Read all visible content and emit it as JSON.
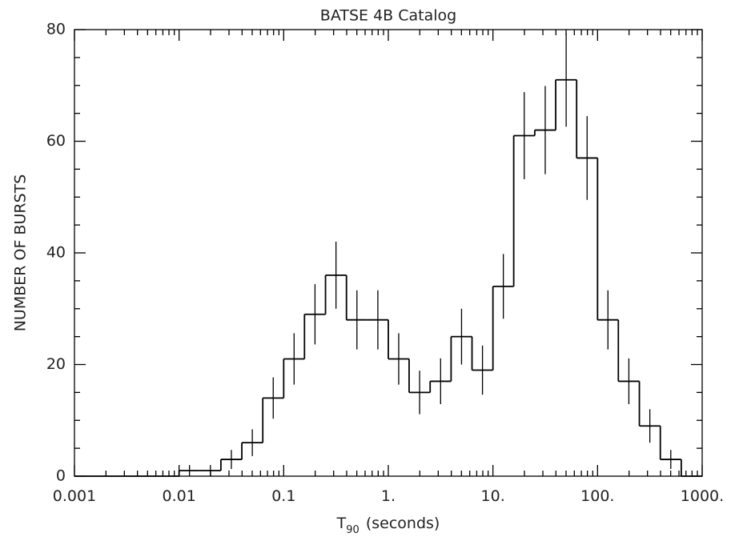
{
  "chart_data": {
    "type": "histogram",
    "title": "BATSE 4B Catalog",
    "x_label": [
      "T",
      "90",
      "(seconds)"
    ],
    "y_label": "NUMBER OF BURSTS",
    "x_scale": "log",
    "color": "#000000",
    "bins": [
      0.001,
      0.00158,
      0.00251,
      0.00398,
      0.00631,
      0.01,
      0.0158,
      0.0251,
      0.0398,
      0.0631,
      0.1,
      0.158,
      0.251,
      0.398,
      0.631,
      1,
      1.58,
      2.51,
      3.98,
      6.31,
      10,
      15.8,
      25.1,
      39.8,
      63.1,
      100,
      158,
      251,
      398,
      631,
      1000
    ],
    "values": [
      0,
      0,
      0,
      0,
      0,
      1,
      1,
      3,
      6,
      14,
      21,
      29,
      36,
      28,
      28,
      21,
      15,
      17,
      25,
      19,
      34,
      61,
      62,
      71,
      57,
      28,
      17,
      9,
      3,
      0
    ],
    "errors": [
      0,
      0,
      0,
      0,
      0,
      1,
      1,
      1.7,
      2.4,
      3.7,
      4.6,
      5.4,
      6,
      5.3,
      5.3,
      4.6,
      3.9,
      4.1,
      5,
      4.4,
      5.8,
      7.8,
      7.9,
      8.4,
      7.5,
      5.3,
      4.1,
      3,
      1.7,
      0
    ],
    "xlim": [
      0.001,
      1000
    ],
    "xticks": [
      0.001,
      0.01,
      0.1,
      {
        "value": 1,
        "label": "1."
      },
      {
        "value": 10,
        "label": "10."
      },
      {
        "value": 100,
        "label": "100."
      },
      {
        "value": 1000,
        "label": "1000."
      }
    ],
    "ylim": [
      0,
      80
    ],
    "yticks": [
      0,
      20,
      40,
      60,
      80
    ]
  }
}
